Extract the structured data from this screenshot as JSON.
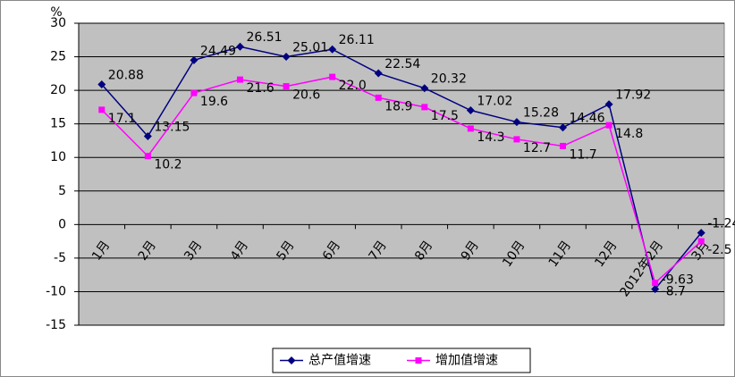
{
  "chart_data": {
    "type": "line",
    "y_unit": "%",
    "categories": [
      "1月",
      "2月",
      "3月",
      "4月",
      "5月",
      "6月",
      "7月",
      "8月",
      "9月",
      "10月",
      "11月",
      "12月",
      "2012年2月",
      "3月"
    ],
    "series": [
      {
        "name": "总产值增速",
        "color": "#000080",
        "marker": "diamond",
        "values": [
          20.88,
          13.15,
          24.49,
          26.51,
          25.01,
          26.11,
          22.54,
          20.32,
          17.02,
          15.28,
          14.46,
          17.92,
          -9.63,
          -1.24
        ]
      },
      {
        "name": "增加值增速",
        "color": "#ff00ff",
        "marker": "square",
        "values": [
          17.1,
          10.2,
          19.6,
          21.6,
          20.6,
          22.0,
          18.9,
          17.5,
          14.3,
          12.7,
          11.7,
          14.8,
          -8.7,
          -2.5
        ],
        "value_labels": [
          "17.1",
          "10.2",
          "19.6",
          "21.6",
          "20.6",
          "22.0",
          "18.9",
          "17.5",
          "14.3",
          "12.7",
          "11.7",
          "14.8",
          "-8.7",
          "-2.5"
        ]
      }
    ],
    "ylim": [
      -15,
      30
    ],
    "yticks": [
      -15,
      -10,
      -5,
      0,
      5,
      10,
      15,
      20,
      25,
      30
    ],
    "grid": true,
    "legend": "bottom",
    "plot_background": "#c0c0c0"
  }
}
